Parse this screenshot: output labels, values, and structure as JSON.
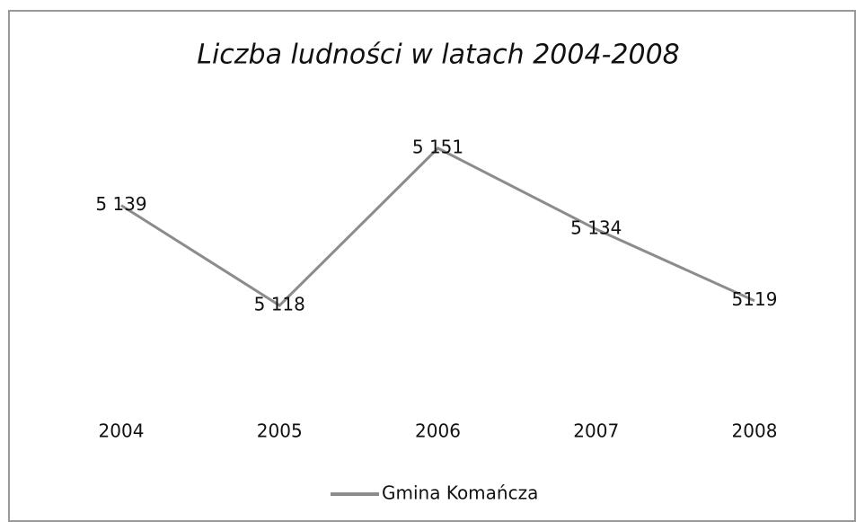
{
  "chart_data": {
    "type": "line",
    "title": "Liczba ludności w latach 2004-2008",
    "categories": [
      "2004",
      "2005",
      "2006",
      "2007",
      "2008"
    ],
    "series": [
      {
        "name": "Gmina Komańcza",
        "color": "#8c8c8c",
        "values": [
          5139,
          5118,
          5151,
          5134,
          5119
        ],
        "value_labels": [
          "5 139",
          "5 118",
          "5 151",
          "5 134",
          "5119"
        ]
      }
    ]
  }
}
